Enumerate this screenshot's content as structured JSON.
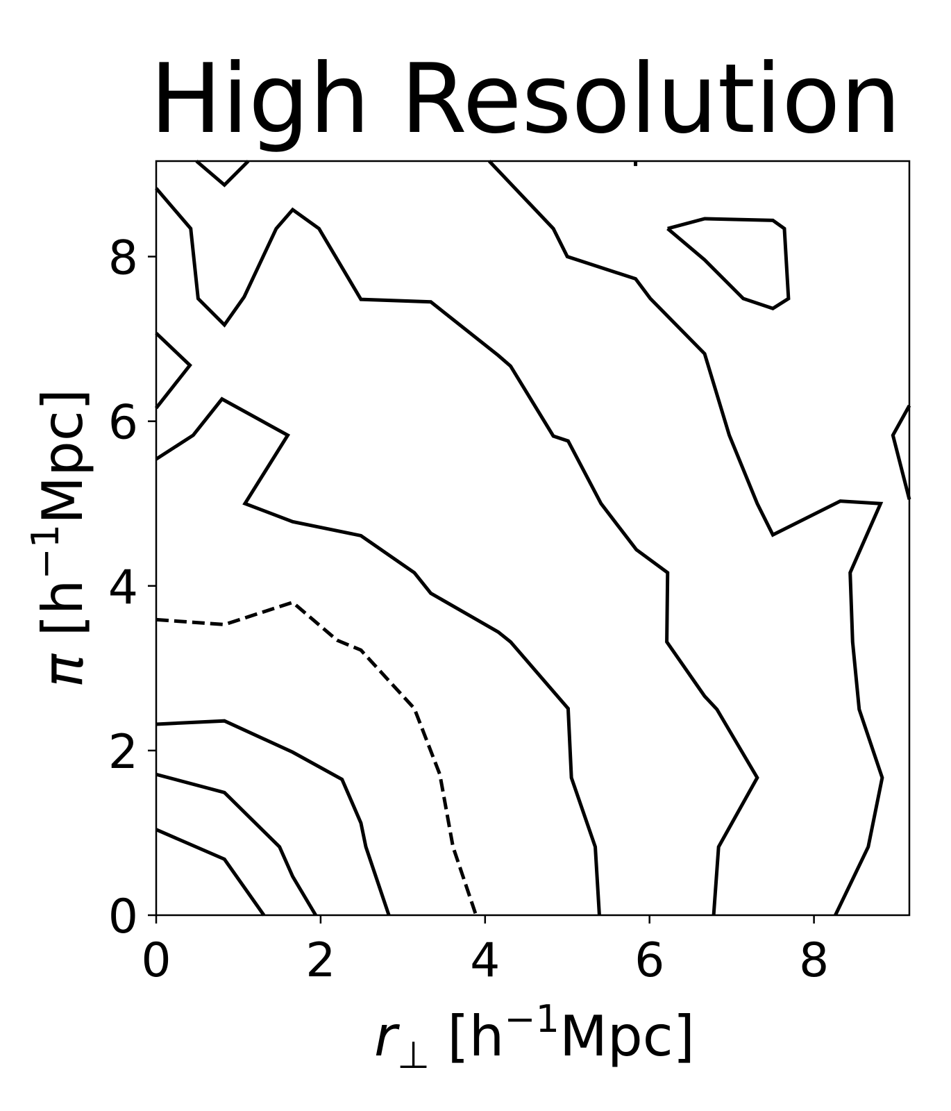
{
  "chart_data": {
    "type": "contour",
    "title": "High Resolution",
    "xlabel": "r_⊥ [h⁻¹Mpc]",
    "xlabel_parts": {
      "symbol": "r",
      "sub": "⊥",
      "unit_pre": " [h",
      "sup": "−1",
      "unit_post": "Mpc]"
    },
    "ylabel": "π [h⁻¹Mpc]",
    "ylabel_parts": {
      "symbol": "π",
      "unit_pre": " [h",
      "sup": "−1",
      "unit_post": "Mpc]"
    },
    "xlim": [
      0,
      9.16
    ],
    "ylim": [
      0,
      9.16
    ],
    "xticks": [
      0,
      2,
      4,
      6,
      8
    ],
    "yticks": [
      0,
      2,
      4,
      6,
      8
    ],
    "xtick_labels": [
      "0",
      "2",
      "4",
      "6",
      "8"
    ],
    "ytick_labels": [
      "0",
      "2",
      "4",
      "6",
      "8"
    ],
    "grid": false,
    "line_color": "#000000",
    "contours": [
      {
        "style": "solid",
        "points": [
          [
            0,
            1.04
          ],
          [
            0.83,
            0.68
          ],
          [
            1.31,
            0
          ]
        ]
      },
      {
        "style": "solid",
        "points": [
          [
            0,
            1.71
          ],
          [
            0.83,
            1.49
          ],
          [
            1.5,
            0.83
          ],
          [
            1.66,
            0.47
          ],
          [
            1.94,
            0
          ]
        ]
      },
      {
        "style": "solid",
        "points": [
          [
            0,
            2.32
          ],
          [
            0.83,
            2.36
          ],
          [
            1.66,
            1.98
          ],
          [
            2.26,
            1.65
          ],
          [
            2.49,
            1.12
          ],
          [
            2.55,
            0.83
          ],
          [
            2.83,
            0
          ]
        ]
      },
      {
        "style": "dashed",
        "points": [
          [
            0,
            3.59
          ],
          [
            0.83,
            3.53
          ],
          [
            1.66,
            3.8
          ],
          [
            2.2,
            3.34
          ],
          [
            2.49,
            3.22
          ],
          [
            3.14,
            2.51
          ],
          [
            3.45,
            1.71
          ],
          [
            3.61,
            0.83
          ],
          [
            3.89,
            0
          ]
        ]
      },
      {
        "style": "solid",
        "points": [
          [
            0,
            5.54
          ],
          [
            0.45,
            5.83
          ],
          [
            0.8,
            6.27
          ],
          [
            1.6,
            5.83
          ],
          [
            1.08,
            5.0
          ],
          [
            1.66,
            4.78
          ],
          [
            2.49,
            4.61
          ],
          [
            3.14,
            4.16
          ],
          [
            3.34,
            3.91
          ],
          [
            4.16,
            3.44
          ],
          [
            4.31,
            3.32
          ],
          [
            5.01,
            2.51
          ],
          [
            5.05,
            1.67
          ],
          [
            5.34,
            0.83
          ],
          [
            5.39,
            0
          ]
        ]
      },
      {
        "style": "solid",
        "points": [
          [
            0,
            7.07
          ],
          [
            0.41,
            6.68
          ],
          [
            0,
            6.16
          ]
        ]
      },
      {
        "style": "solid",
        "points": [
          [
            0,
            8.83
          ],
          [
            0.42,
            8.34
          ],
          [
            0.51,
            7.49
          ],
          [
            0.83,
            7.17
          ],
          [
            1.07,
            7.51
          ],
          [
            1.46,
            8.34
          ],
          [
            1.66,
            8.57
          ],
          [
            1.98,
            8.34
          ],
          [
            2.49,
            7.48
          ],
          [
            3.34,
            7.45
          ],
          [
            4.16,
            6.8
          ],
          [
            4.31,
            6.67
          ],
          [
            4.83,
            5.82
          ],
          [
            5.01,
            5.76
          ],
          [
            5.41,
            5.0
          ],
          [
            5.84,
            4.44
          ],
          [
            6.22,
            4.16
          ],
          [
            6.21,
            3.32
          ],
          [
            6.67,
            2.66
          ],
          [
            6.82,
            2.5
          ],
          [
            7.31,
            1.67
          ],
          [
            6.84,
            0.83
          ],
          [
            6.78,
            0
          ]
        ]
      },
      {
        "style": "solid",
        "points": [
          [
            0.49,
            9.16
          ],
          [
            0.83,
            8.87
          ],
          [
            1.12,
            9.16
          ]
        ]
      },
      {
        "style": "solid",
        "points": [
          [
            4.05,
            9.16
          ],
          [
            4.83,
            8.34
          ],
          [
            5.0,
            8.0
          ],
          [
            5.83,
            7.73
          ],
          [
            6.01,
            7.49
          ],
          [
            6.67,
            6.82
          ],
          [
            6.97,
            5.83
          ],
          [
            7.31,
            5.0
          ],
          [
            7.5,
            4.62
          ],
          [
            8.32,
            5.03
          ],
          [
            8.81,
            5.0
          ],
          [
            8.44,
            4.16
          ],
          [
            8.47,
            3.32
          ],
          [
            8.55,
            2.5
          ],
          [
            8.83,
            1.67
          ],
          [
            8.66,
            0.83
          ],
          [
            8.26,
            0
          ]
        ]
      },
      {
        "style": "solid",
        "points": [
          [
            6.22,
            8.34
          ],
          [
            6.67,
            8.46
          ],
          [
            7.5,
            8.44
          ],
          [
            7.64,
            8.34
          ],
          [
            7.69,
            7.49
          ],
          [
            7.5,
            7.37
          ],
          [
            7.14,
            7.49
          ],
          [
            6.67,
            7.96
          ],
          [
            6.22,
            8.34
          ]
        ]
      },
      {
        "style": "solid",
        "points": [
          [
            9.16,
            6.19
          ],
          [
            8.96,
            5.83
          ],
          [
            9.16,
            5.05
          ]
        ]
      },
      {
        "style": "solid",
        "points": [
          [
            5.83,
            9.16
          ],
          [
            5.83,
            9.1
          ]
        ]
      }
    ]
  }
}
